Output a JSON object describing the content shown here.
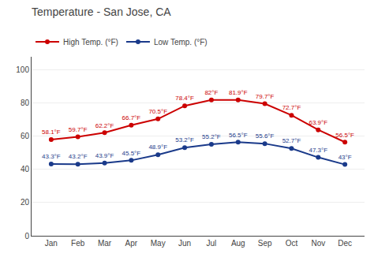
{
  "chart_data": {
    "type": "line",
    "title": "Temperature - San Jose, CA",
    "categories": [
      "Jan",
      "Feb",
      "Mar",
      "Apr",
      "May",
      "Jun",
      "Jul",
      "Aug",
      "Sep",
      "Oct",
      "Nov",
      "Dec"
    ],
    "series": [
      {
        "name": "High Temp. (°F)",
        "color": "#cc0000",
        "values": [
          58.1,
          59.7,
          62.2,
          66.7,
          70.5,
          78.4,
          82.0,
          81.9,
          79.7,
          72.7,
          63.9,
          56.5
        ],
        "value_labels": [
          "58.1°F",
          "59.7°F",
          "62.2°F",
          "66.7°F",
          "70.5°F",
          "78.4°F",
          "82°F",
          "81.9°F",
          "79.7°F",
          "72.7°F",
          "63.9°F",
          "56.5°F"
        ]
      },
      {
        "name": "Low Temp. (°F)",
        "color": "#1a3a8a",
        "values": [
          43.3,
          43.2,
          43.9,
          45.5,
          48.9,
          53.2,
          55.2,
          56.5,
          55.6,
          52.7,
          47.3,
          43.0
        ],
        "value_labels": [
          "43.3°F",
          "43.2°F",
          "43.9°F",
          "45.5°F",
          "48.9°F",
          "53.2°F",
          "55.2°F",
          "56.5°F",
          "55.6°F",
          "52.7°F",
          "47.3°F",
          "43°F"
        ]
      }
    ],
    "ylim": [
      0,
      108
    ],
    "yticks": [
      0,
      20,
      40,
      60,
      80,
      100
    ],
    "grid": true,
    "legend": "upper left",
    "data_labels": true,
    "marker": "circle"
  }
}
